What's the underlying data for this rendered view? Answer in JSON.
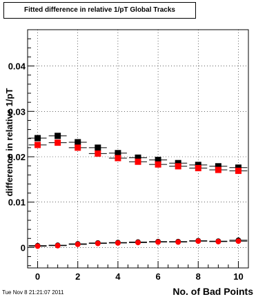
{
  "title": "Fitted difference in relative 1/pT  Global Tracks",
  "timestamp": "Tue Nov  8 21:21:07 2011",
  "chart_data": {
    "type": "scatter",
    "xlabel": "No. of Bad Points",
    "ylabel": "difference in relative 1/pT",
    "xlim": [
      -0.5,
      10.5
    ],
    "ylim": [
      -0.0045,
      0.048
    ],
    "xticks": [
      0,
      2,
      4,
      6,
      8,
      10
    ],
    "xtick_labels": [
      "0",
      "2",
      "4",
      "6",
      "8",
      "10"
    ],
    "yticks": [
      0,
      0.01,
      0.02,
      0.03,
      0.04
    ],
    "ytick_labels": [
      "0",
      "0.01",
      "0.02",
      "0.03",
      "0.04"
    ],
    "grid": true,
    "series": [
      {
        "marker": "square",
        "color": "#000000",
        "x": [
          0,
          1,
          2,
          3,
          4,
          5,
          6,
          7,
          8,
          9,
          10
        ],
        "y": [
          0.0241,
          0.0246,
          0.0232,
          0.022,
          0.0208,
          0.0198,
          0.0193,
          0.0186,
          0.0182,
          0.0179,
          0.0176
        ]
      },
      {
        "marker": "square",
        "color": "#ff0000",
        "x": [
          0,
          1,
          2,
          3,
          4,
          5,
          6,
          7,
          8,
          9,
          10
        ],
        "y": [
          0.0226,
          0.0231,
          0.022,
          0.0207,
          0.0197,
          0.0189,
          0.0183,
          0.0179,
          0.0175,
          0.0171,
          0.0169
        ]
      },
      {
        "marker": "circle",
        "color": "#000000",
        "x": [
          0,
          1,
          2,
          3,
          4,
          5,
          6,
          7,
          8,
          9,
          10
        ],
        "y": [
          0.0004,
          0.0005,
          0.0008,
          0.001,
          0.0011,
          0.0012,
          0.0013,
          0.0013,
          0.0015,
          0.0014,
          0.0016
        ]
      },
      {
        "marker": "circle",
        "color": "#ff0000",
        "x": [
          0,
          1,
          2,
          3,
          4,
          5,
          6,
          7,
          8,
          9,
          10
        ],
        "y": [
          0.0003,
          0.0004,
          0.0007,
          0.0009,
          0.001,
          0.0011,
          0.0012,
          0.0012,
          0.0014,
          0.0013,
          0.0014
        ]
      }
    ]
  }
}
